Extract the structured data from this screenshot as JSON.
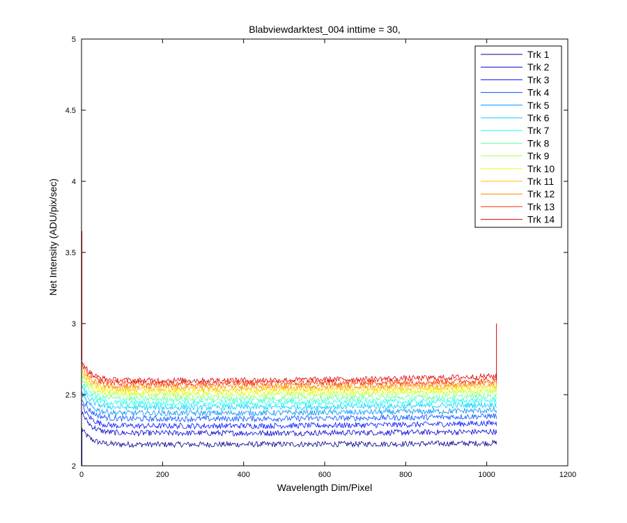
{
  "chart_data": {
    "type": "line",
    "title": "Blabviewdarktest_004 inttime = 30,",
    "xlabel": "Wavelength Dim/Pixel",
    "ylabel": "Net Intensity (ADU/pix/sec)",
    "xlim": [
      0,
      1200
    ],
    "ylim": [
      2,
      5
    ],
    "xticks": [
      0,
      200,
      400,
      600,
      800,
      1000,
      1200
    ],
    "yticks": [
      2,
      2.5,
      3,
      3.5,
      4,
      4.5,
      5
    ],
    "xtick_labels": [
      "0",
      "200",
      "400",
      "600",
      "800",
      "1000",
      "1200"
    ],
    "ytick_labels": [
      "2",
      "2.5",
      "3",
      "3.5",
      "4",
      "4.5",
      "5"
    ],
    "grid": false,
    "legend_position": "top-right",
    "x_range": [
      1,
      1024
    ],
    "series": [
      {
        "name": "Trk 1",
        "color": "#00008f",
        "start": 2.26,
        "level": 2.15,
        "end": 2.16
      },
      {
        "name": "Trk 2",
        "color": "#0000cf",
        "start": 2.38,
        "level": 2.23,
        "end": 2.24
      },
      {
        "name": "Trk 3",
        "color": "#0010ff",
        "start": 2.43,
        "level": 2.28,
        "end": 2.3
      },
      {
        "name": "Trk 4",
        "color": "#0050ff",
        "start": 2.48,
        "level": 2.33,
        "end": 2.35
      },
      {
        "name": "Trk 5",
        "color": "#008fff",
        "start": 2.51,
        "level": 2.37,
        "end": 2.39
      },
      {
        "name": "Trk 6",
        "color": "#00cfff",
        "start": 2.55,
        "level": 2.41,
        "end": 2.43
      },
      {
        "name": "Trk 7",
        "color": "#10ffef",
        "start": 2.58,
        "level": 2.44,
        "end": 2.46
      },
      {
        "name": "Trk 8",
        "color": "#60ff9f",
        "start": 2.61,
        "level": 2.47,
        "end": 2.49
      },
      {
        "name": "Trk 9",
        "color": "#afff50",
        "start": 2.64,
        "level": 2.5,
        "end": 2.52
      },
      {
        "name": "Trk 10",
        "color": "#efff10",
        "start": 2.66,
        "level": 2.52,
        "end": 2.54
      },
      {
        "name": "Trk 11",
        "color": "#ffbf00",
        "start": 2.68,
        "level": 2.54,
        "end": 2.56
      },
      {
        "name": "Trk 12",
        "color": "#ff7f00",
        "start": 2.7,
        "level": 2.56,
        "end": 2.58
      },
      {
        "name": "Trk 13",
        "color": "#ff3000",
        "start": 2.72,
        "level": 2.58,
        "end": 2.6
      },
      {
        "name": "Trk 14",
        "color": "#df0000",
        "start": 2.74,
        "level": 2.6,
        "end": 2.63
      }
    ],
    "spikes": [
      {
        "series": "Trk 1",
        "x": 1,
        "y": 2.0
      },
      {
        "series": "Trk 14",
        "x": 1,
        "y": 3.65
      },
      {
        "series": "Trk 14",
        "x": 1024,
        "y": 3.0
      }
    ]
  }
}
